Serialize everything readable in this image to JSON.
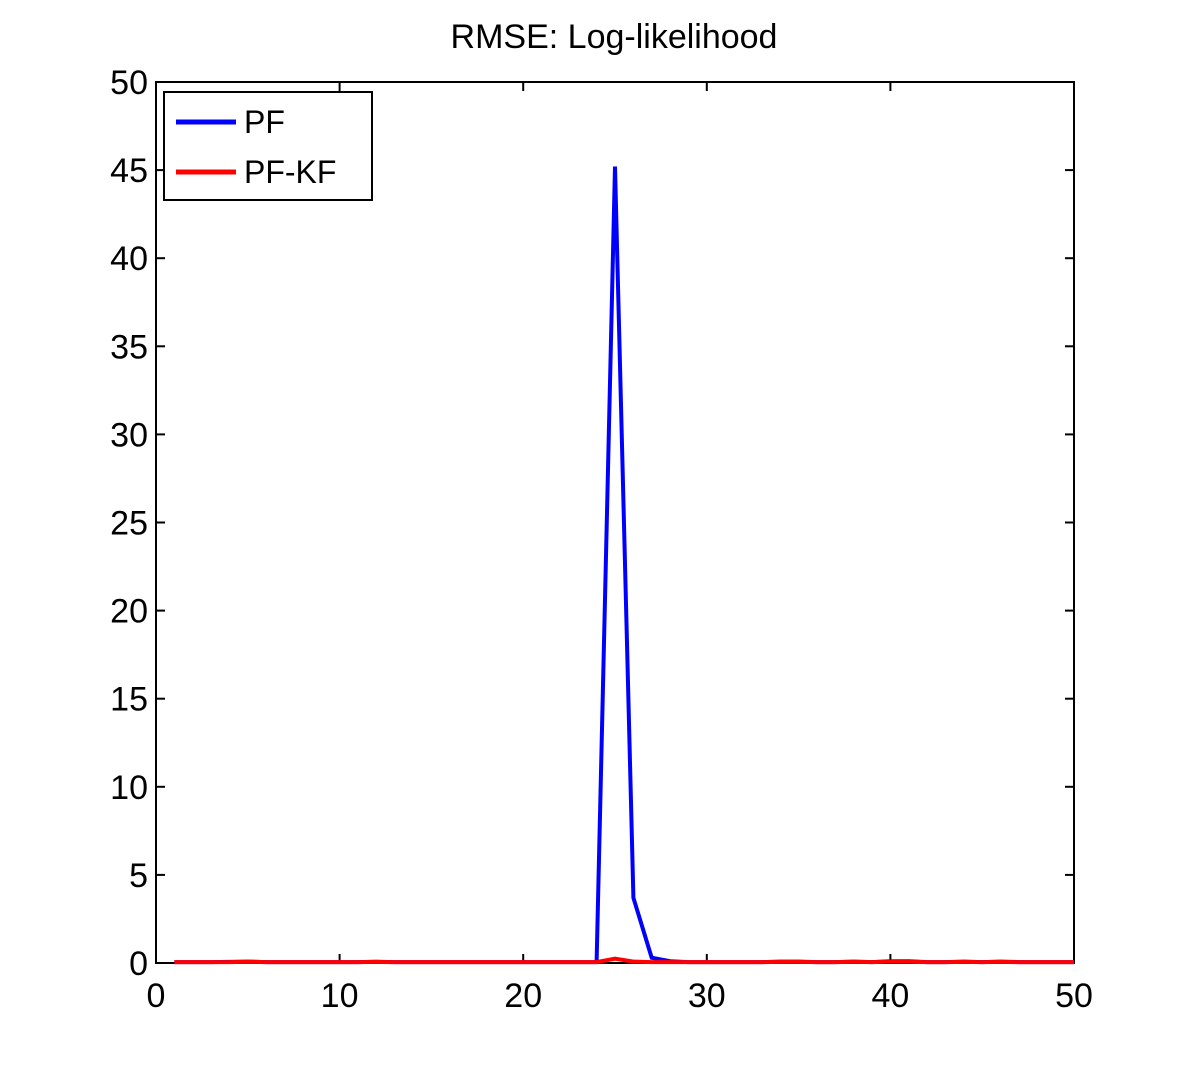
{
  "chart_data": {
    "type": "line",
    "title": "RMSE: Log-likelihood",
    "xlabel": "",
    "ylabel": "",
    "xlim": [
      0,
      50
    ],
    "ylim": [
      0,
      50
    ],
    "xticks": [
      0,
      10,
      20,
      30,
      40,
      50
    ],
    "yticks": [
      0,
      5,
      10,
      15,
      20,
      25,
      30,
      35,
      40,
      45,
      50
    ],
    "grid": false,
    "legend_position": "top-left",
    "x": [
      1,
      2,
      3,
      4,
      5,
      6,
      7,
      8,
      9,
      10,
      11,
      12,
      13,
      14,
      15,
      16,
      17,
      18,
      19,
      20,
      21,
      22,
      23,
      24,
      25,
      26,
      27,
      28,
      29,
      30,
      31,
      32,
      33,
      34,
      35,
      36,
      37,
      38,
      39,
      40,
      41,
      42,
      43,
      44,
      45,
      46,
      47,
      48,
      49,
      50
    ],
    "series": [
      {
        "name": "PF",
        "color": "#0000ff",
        "values": [
          0.05,
          0.05,
          0.05,
          0.06,
          0.08,
          0.05,
          0.05,
          0.05,
          0.05,
          0.05,
          0.05,
          0.07,
          0.05,
          0.05,
          0.05,
          0.05,
          0.05,
          0.05,
          0.05,
          0.05,
          0.05,
          0.05,
          0.05,
          0.05,
          45.2,
          3.7,
          0.3,
          0.1,
          0.05,
          0.05,
          0.05,
          0.05,
          0.05,
          0.08,
          0.08,
          0.05,
          0.05,
          0.08,
          0.05,
          0.1,
          0.1,
          0.05,
          0.05,
          0.08,
          0.05,
          0.08,
          0.05,
          0.05,
          0.05,
          0.05
        ]
      },
      {
        "name": "PF-KF",
        "color": "#ff0000",
        "values": [
          0.05,
          0.05,
          0.05,
          0.05,
          0.07,
          0.05,
          0.05,
          0.05,
          0.05,
          0.05,
          0.05,
          0.06,
          0.05,
          0.05,
          0.05,
          0.05,
          0.05,
          0.05,
          0.05,
          0.05,
          0.05,
          0.05,
          0.05,
          0.05,
          0.25,
          0.08,
          0.05,
          0.05,
          0.05,
          0.05,
          0.05,
          0.05,
          0.05,
          0.06,
          0.06,
          0.05,
          0.05,
          0.07,
          0.05,
          0.08,
          0.07,
          0.05,
          0.05,
          0.06,
          0.05,
          0.06,
          0.05,
          0.05,
          0.05,
          0.05
        ]
      }
    ]
  }
}
